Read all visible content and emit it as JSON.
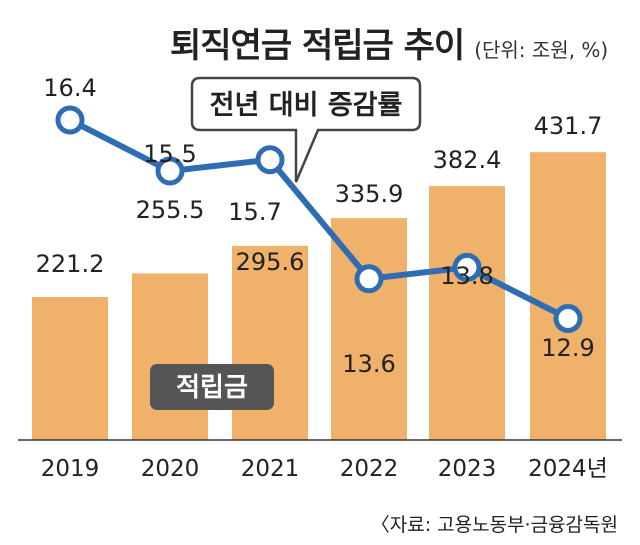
{
  "header": {
    "title": "퇴직연금 적립금 추이",
    "unit": "(단위: 조원, %)"
  },
  "source": "〈자료: 고용노동부·금융감독원",
  "chart_data": {
    "type": "bar",
    "categories": [
      "2019",
      "2020",
      "2021",
      "2022",
      "2023",
      "2024년"
    ],
    "series": [
      {
        "name": "적립금",
        "type": "bar",
        "values": [
          221.2,
          255.5,
          295.6,
          335.9,
          382.4,
          431.7
        ]
      },
      {
        "name": "전년 대비 증감률",
        "type": "line",
        "values": [
          16.4,
          15.5,
          15.7,
          13.6,
          13.8,
          12.9
        ]
      }
    ],
    "colors": {
      "bar": "#F0B26B",
      "line": "#2E6DB4",
      "label_box": "#555555"
    }
  }
}
